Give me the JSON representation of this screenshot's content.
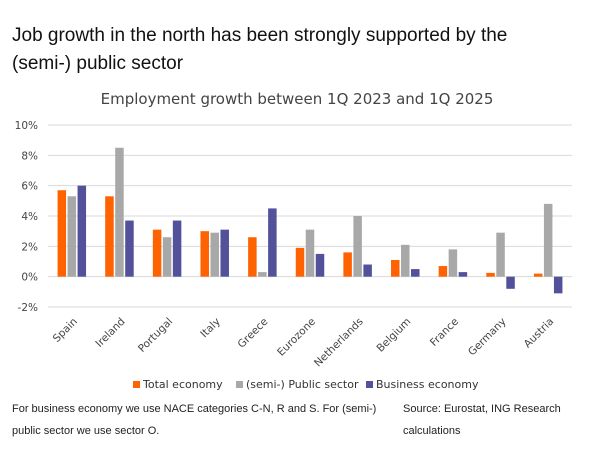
{
  "headline": {
    "line1": "Job growth in the north has been strongly supported by the",
    "line2": "(semi-) public sector"
  },
  "footer": {
    "note_line1": "For business economy we use NACE categories C-N, R and S. For (semi-)",
    "note_line2": "public sector we use sector O.",
    "source_line1": "Source: Eurostat, ING Research",
    "source_line2": "calculations"
  },
  "chart_data": {
    "type": "bar",
    "title": "Employment growth between 1Q 2023 and 1Q 2025",
    "xlabel": "",
    "ylabel": "",
    "ylim": [
      -2,
      10
    ],
    "yticks": [
      "-2%",
      "0%",
      "2%",
      "4%",
      "6%",
      "8%",
      "10%"
    ],
    "grid": true,
    "legend_position": "bottom",
    "categories": [
      "Spain",
      "Ireland",
      "Portugal",
      "Italy",
      "Greece",
      "Eurozone",
      "Netherlands",
      "Belgium",
      "France",
      "Germany",
      "Austria"
    ],
    "series": [
      {
        "name": "Total economy",
        "color": "#ff6200",
        "values": [
          5.7,
          5.3,
          3.1,
          3.0,
          2.6,
          1.9,
          1.6,
          1.1,
          0.7,
          0.25,
          0.2
        ]
      },
      {
        "name": "(semi-) Public sector",
        "color": "#a8a8a8",
        "values": [
          5.3,
          8.5,
          2.6,
          2.9,
          0.3,
          3.1,
          4.0,
          2.1,
          1.8,
          2.9,
          4.8
        ]
      },
      {
        "name": "Business economy",
        "color": "#525199",
        "values": [
          6.0,
          3.7,
          3.7,
          3.1,
          4.5,
          1.5,
          0.8,
          0.5,
          0.3,
          -0.8,
          -1.1
        ]
      }
    ]
  }
}
